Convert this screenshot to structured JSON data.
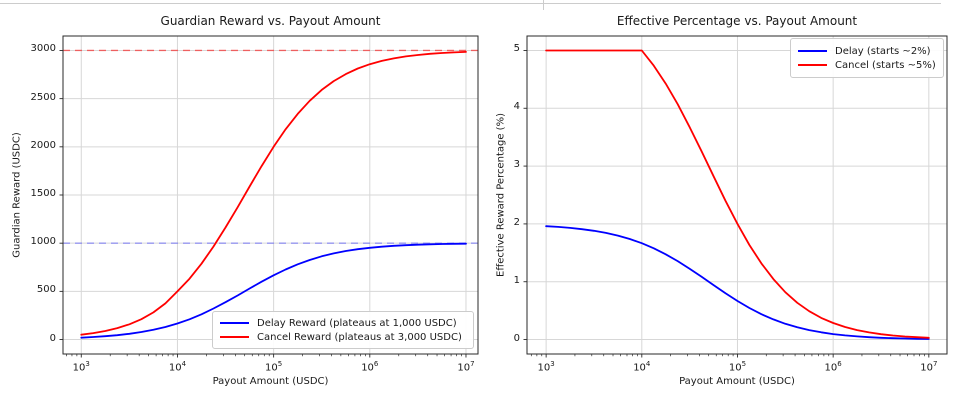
{
  "figure": {
    "background": "#ffffff",
    "top_rule_color": "#cccccc",
    "grid_color": "#d7d7d7",
    "spine_color": "#2a2a2a"
  },
  "chart_data": [
    {
      "type": "line",
      "title": "Guardian Reward vs. Payout Amount",
      "xlabel": "Payout Amount (USDC)",
      "ylabel": "Guardian Reward (USDC)",
      "x_scale": "log10",
      "x_tick_exponents": [
        3,
        4,
        5,
        6,
        7
      ],
      "xlim_log10": [
        2.81,
        7.125
      ],
      "ylim": [
        -150,
        3150
      ],
      "y_ticks": [
        0,
        500,
        1000,
        1500,
        2000,
        2500,
        3000
      ],
      "grid": true,
      "legend_position": "lower right",
      "log10_x": [
        3,
        3.125,
        3.25,
        3.375,
        3.5,
        3.625,
        3.75,
        3.875,
        4,
        4.125,
        4.25,
        4.375,
        4.5,
        4.625,
        4.75,
        4.875,
        5,
        5.125,
        5.25,
        5.375,
        5.5,
        5.625,
        5.75,
        5.875,
        6,
        6.125,
        6.25,
        6.375,
        6.5,
        6.625,
        6.75,
        6.875,
        7
      ],
      "series": [
        {
          "name": "Delay Reward (plateaus at 1,000 USDC)",
          "color": "#0000ff",
          "values": [
            19.6,
            26.0,
            34.3,
            45.3,
            59.5,
            77.8,
            101.1,
            130.4,
            166.7,
            210.6,
            262.4,
            321.7,
            387.4,
            457.5,
            529.3,
            600.0,
            666.7,
            727.3,
            780.5,
            825.9,
            863.5,
            894.0,
            918.4,
            937.5,
            952.4,
            963.9,
            972.7,
            979.4,
            984.4,
            988.3,
            991.2,
            993.4,
            995.0
          ]
        },
        {
          "name": "Cancel Reward (plateaus at 3,000 USDC)",
          "color": "#ff0000",
          "values": [
            50.0,
            66.7,
            88.9,
            118.6,
            158.1,
            210.8,
            281.2,
            375.0,
            500.0,
            631.6,
            787.0,
            965.1,
            1162.3,
            1372.6,
            1588.0,
            1799.9,
            2000.0,
            2181.9,
            2341.6,
            2477.6,
            2590.4,
            2682.0,
            2755.0,
            2812.5,
            2857.1,
            2891.6,
            2917.9,
            2938.1,
            2953.3,
            2964.8,
            2973.6,
            2980.1,
            2985.1
          ]
        }
      ],
      "reference_lines": [
        {
          "y": 1000,
          "color": "#3b3bff",
          "style": "dashed",
          "opacity": 0.45
        },
        {
          "y": 3000,
          "color": "#ff0000",
          "style": "dashed",
          "opacity": 0.55
        }
      ]
    },
    {
      "type": "line",
      "title": "Effective Percentage vs. Payout Amount",
      "xlabel": "Payout Amount (USDC)",
      "ylabel": "Effective Reward Percentage (%)",
      "x_scale": "log10",
      "x_tick_exponents": [
        3,
        4,
        5,
        6,
        7
      ],
      "xlim_log10": [
        2.8,
        7.19
      ],
      "ylim": [
        -0.25,
        5.25
      ],
      "y_ticks": [
        0,
        1,
        2,
        3,
        4,
        5
      ],
      "grid": true,
      "legend_position": "upper right",
      "log10_x": [
        3,
        3.125,
        3.25,
        3.375,
        3.5,
        3.625,
        3.75,
        3.875,
        4,
        4.125,
        4.25,
        4.375,
        4.5,
        4.625,
        4.75,
        4.875,
        5,
        5.125,
        5.25,
        5.375,
        5.5,
        5.625,
        5.75,
        5.875,
        6,
        6.125,
        6.25,
        6.375,
        6.5,
        6.625,
        6.75,
        6.875,
        7
      ],
      "series": [
        {
          "name": "Delay (starts ~2%)",
          "color": "#0000ff",
          "values": [
            1.961,
            1.948,
            1.931,
            1.909,
            1.881,
            1.844,
            1.798,
            1.739,
            1.667,
            1.579,
            1.475,
            1.357,
            1.225,
            1.085,
            0.941,
            0.8,
            0.667,
            0.545,
            0.439,
            0.348,
            0.273,
            0.212,
            0.163,
            0.125,
            0.095,
            0.072,
            0.055,
            0.041,
            0.031,
            0.023,
            0.018,
            0.013,
            0.01
          ]
        },
        {
          "name": "Cancel (starts ~5%)",
          "color": "#ff0000",
          "values": [
            5,
            5,
            5,
            5,
            5,
            5,
            5,
            5,
            5,
            4.737,
            4.426,
            4.07,
            3.675,
            3.255,
            2.824,
            2.4,
            2.0,
            1.636,
            1.317,
            1.045,
            0.819,
            0.636,
            0.49,
            0.375,
            0.286,
            0.217,
            0.164,
            0.124,
            0.093,
            0.07,
            0.053,
            0.04,
            0.03
          ]
        }
      ],
      "reference_lines": []
    }
  ]
}
